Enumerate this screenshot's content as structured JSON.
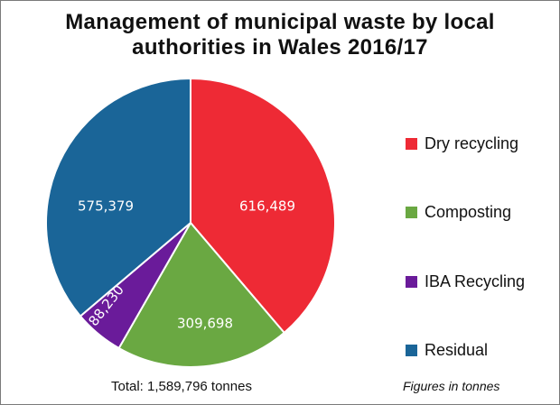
{
  "chart_data": {
    "type": "pie",
    "title": "Management of municipal waste by local authorities in Wales 2016/17",
    "title_lines": [
      "Management of municipal waste by local",
      "authorities in Wales 2016/17"
    ],
    "categories": [
      "Dry recycling",
      "Composting",
      "IBA Recycling",
      "Residual"
    ],
    "values": [
      616489,
      309698,
      88230,
      575379
    ],
    "value_labels": [
      "616,489",
      "309,698",
      "88,230",
      "575,379"
    ],
    "colors": [
      "#ee2a35",
      "#6aa842",
      "#6a1b9a",
      "#1a6598"
    ],
    "start_angle": "12 o'clock, clockwise",
    "legend_position": "right",
    "total_label": "Total: 1,589,796 tonnes",
    "note": "Figures in tonnes"
  },
  "legend": [
    {
      "label": "Dry recycling",
      "color": "#ee2a35"
    },
    {
      "label": "Composting",
      "color": "#6aa842"
    },
    {
      "label": "IBA Recycling",
      "color": "#6a1b9a"
    },
    {
      "label": "Residual",
      "color": "#1a6598"
    }
  ]
}
